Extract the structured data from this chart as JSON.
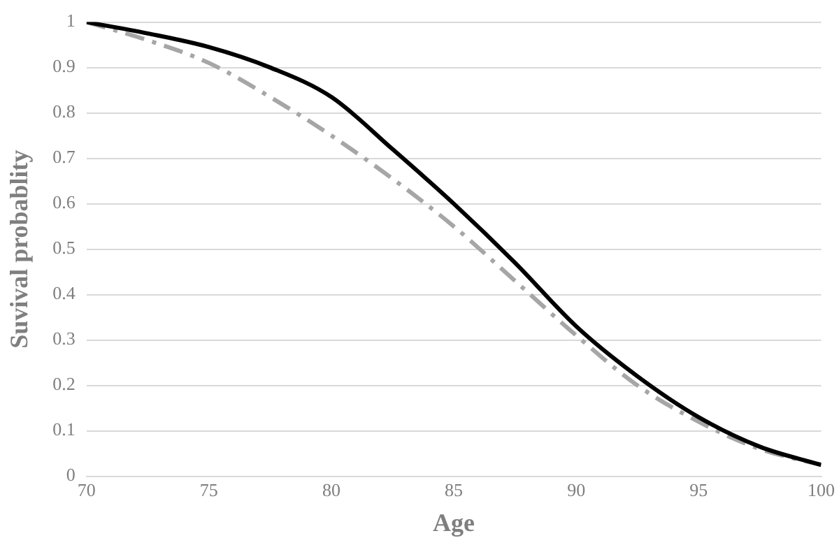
{
  "chart_data": {
    "type": "line",
    "xlabel": "Age",
    "ylabel": "Suvival probablity",
    "x": [
      70,
      72.5,
      75,
      77.5,
      80,
      82.5,
      85,
      87.5,
      90,
      92.5,
      95,
      97.5,
      100
    ],
    "series": [
      {
        "color": "#000000",
        "line_style": "solid",
        "values": [
          1,
          0.975,
          0.945,
          0.9,
          0.835,
          0.72,
          0.6,
          0.47,
          0.33,
          0.22,
          0.13,
          0.065,
          0.025
        ]
      },
      {
        "color": "#a6a6a6",
        "line_style": "dashed",
        "values": [
          1,
          0.96,
          0.91,
          0.835,
          0.75,
          0.655,
          0.55,
          0.43,
          0.31,
          0.2,
          0.12,
          0.06,
          0.025
        ]
      }
    ],
    "xlim": [
      70,
      100
    ],
    "xticks": [
      70,
      75,
      80,
      85,
      90,
      95,
      100
    ],
    "ylim": [
      0,
      1
    ],
    "yticks": [
      0,
      0.1,
      0.2,
      0.3,
      0.4,
      0.5,
      0.6,
      0.7,
      0.8,
      0.9,
      1
    ],
    "grid": "y",
    "legend": false,
    "marker": "none"
  }
}
